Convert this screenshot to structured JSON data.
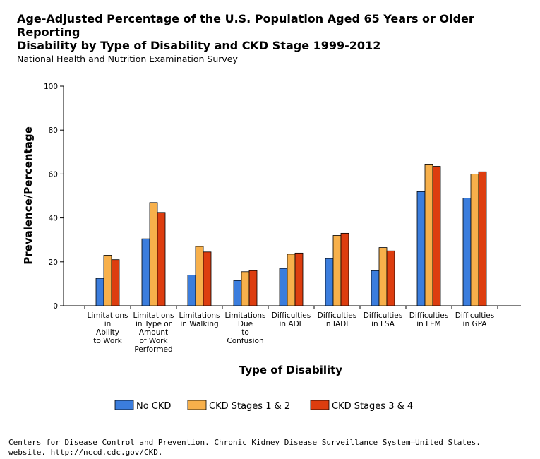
{
  "title_line1": "Age-Adjusted Percentage of the U.S. Population Aged 65 Years or Older Reporting",
  "title_line2": "Disability by Type of Disability and CKD Stage 1999-2012",
  "subtitle": "National Health and Nutrition Examination Survey",
  "source_line1": "Centers for Disease Control and Prevention. Chronic Kidney Disease Surveillance System—United States.",
  "source_line2": "website. http://nccd.cdc.gov/CKD.",
  "chart_data": {
    "type": "bar",
    "xlabel": "Type of Disability",
    "ylabel": "Prevalence/Percentage",
    "ylim": [
      0,
      100
    ],
    "yticks": [
      0,
      20,
      40,
      60,
      80,
      100
    ],
    "grid": false,
    "legend_placement": "bottom",
    "categories": [
      [
        "Limitations",
        "in",
        "Ability",
        "to Work"
      ],
      [
        "Limitations",
        "in Type or",
        "Amount",
        "of Work",
        "Performed"
      ],
      [
        "Limitations",
        "in Walking"
      ],
      [
        "Limitations",
        "Due",
        "to",
        "Confusion"
      ],
      [
        "Difficulties",
        "in ADL"
      ],
      [
        "Difficulties",
        "in IADL"
      ],
      [
        "Difficulties",
        "in LSA"
      ],
      [
        "Difficulties",
        "in LEM"
      ],
      [
        "Difficulties",
        "in GPA"
      ]
    ],
    "series": [
      {
        "name": "No CKD",
        "color": "#3b7ddd",
        "values": [
          12.5,
          30.5,
          14,
          11.5,
          17,
          21.5,
          16,
          52,
          49
        ]
      },
      {
        "name": "CKD Stages 1 & 2",
        "color": "#f7b04b",
        "values": [
          23,
          47,
          27,
          15.5,
          23.5,
          32,
          26.5,
          64.5,
          60
        ]
      },
      {
        "name": "CKD Stages 3 & 4",
        "color": "#dd3d0f",
        "values": [
          21,
          42.5,
          24.5,
          16,
          24,
          33,
          25,
          63.5,
          61
        ]
      }
    ]
  }
}
